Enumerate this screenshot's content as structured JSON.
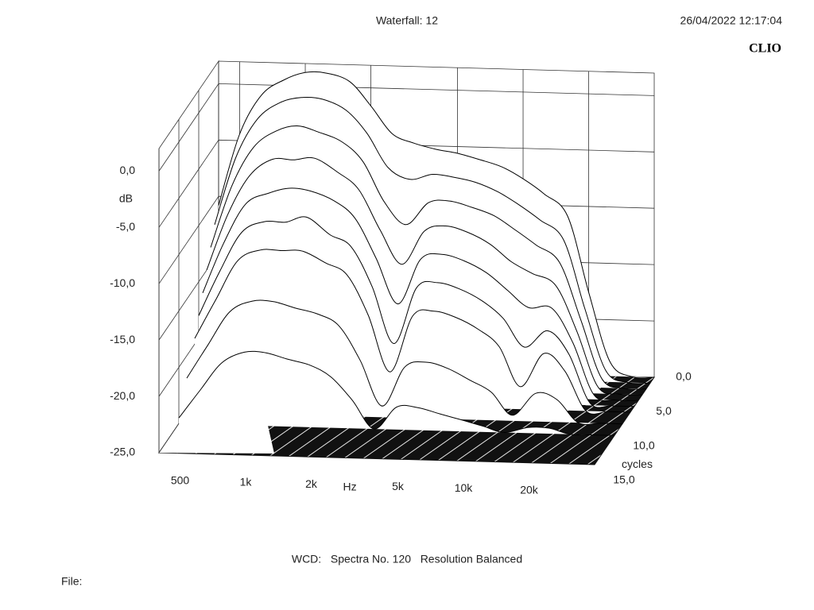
{
  "header": {
    "title": "Waterfall: 12",
    "timestamp": "26/04/2022 12:17:04",
    "brand": "CLIO"
  },
  "chart_data": {
    "type": "waterfall",
    "ylabel": "dB",
    "xlabel": "Hz",
    "zlabel": "cycles",
    "xlog": true,
    "color": "#000000",
    "xlim": [
      400,
      40000
    ],
    "xticks": [
      500,
      {
        "value": 1000,
        "label": "1k"
      },
      {
        "value": 2000,
        "label": "2k"
      },
      {
        "value": 5000,
        "label": "5k"
      },
      {
        "value": 10000,
        "label": "10k"
      },
      {
        "value": 20000,
        "label": "20k"
      }
    ],
    "ylim": [
      -25,
      2
    ],
    "yticks": [
      {
        "value": 0,
        "label": "0,0"
      },
      {
        "value": -5,
        "label": "-5,0"
      },
      {
        "value": -10,
        "label": "-10,0"
      },
      {
        "value": -15,
        "label": "-15,0"
      },
      {
        "value": -20,
        "label": "-20,0"
      },
      {
        "value": -25,
        "label": "-25,0"
      }
    ],
    "zlim": [
      0,
      15
    ],
    "zticks": [
      {
        "value": 0,
        "label": "0,0"
      },
      {
        "value": 5,
        "label": "5,0"
      },
      {
        "value": 10,
        "label": "10,0"
      },
      {
        "value": 15,
        "label": "15,0"
      }
    ],
    "frequencies": [
      400,
      500,
      630,
      800,
      1000,
      1250,
      1600,
      2000,
      2500,
      3150,
      4000,
      5000,
      6300,
      8000,
      10000,
      12500,
      16000,
      20000,
      25000,
      31500,
      40000
    ],
    "slices": [
      {
        "cycles": 0,
        "values": [
          -10.8,
          -4.4,
          -0.9,
          0.5,
          1.2,
          1.2,
          0.5,
          -1.6,
          -4.0,
          -4.8,
          -5.3,
          -5.6,
          -6.1,
          -6.7,
          -7.7,
          -9.0,
          -10.9,
          -17.6,
          -23.7,
          -25,
          -25
        ]
      },
      {
        "cycles": 1,
        "values": [
          -12,
          -6,
          -2.5,
          -1,
          -0.5,
          -0.6,
          -1.5,
          -3.5,
          -6.5,
          -7.5,
          -7,
          -7.2,
          -7.6,
          -8.4,
          -9.5,
          -10.8,
          -12.5,
          -18.5,
          -24,
          -25,
          -25
        ]
      },
      {
        "cycles": 2,
        "values": [
          -13.5,
          -8,
          -4.5,
          -3,
          -2.5,
          -3,
          -3.8,
          -5.5,
          -9,
          -11,
          -9,
          -8.8,
          -9.3,
          -10,
          -11.2,
          -12.5,
          -14,
          -19,
          -24.2,
          -25,
          -25
        ]
      },
      {
        "cycles": 3,
        "values": [
          -15,
          -10,
          -6.5,
          -5,
          -5,
          -4.8,
          -6,
          -7.5,
          -11,
          -14,
          -11,
          -10.5,
          -11,
          -12,
          -13.5,
          -14.5,
          -15.5,
          -19.5,
          -24.4,
          -25,
          -25
        ]
      },
      {
        "cycles": 4,
        "values": [
          -16.5,
          -12,
          -8.5,
          -7.5,
          -7,
          -7.2,
          -8,
          -9.5,
          -13,
          -17,
          -13,
          -12.5,
          -13,
          -14,
          -15.5,
          -17,
          -17,
          -20,
          -24.6,
          -25,
          -25
        ]
      },
      {
        "cycles": 5,
        "values": [
          -18,
          -14,
          -10.5,
          -9.5,
          -9.5,
          -9,
          -10.5,
          -11.5,
          -15,
          -20,
          -15,
          -14.5,
          -15,
          -16,
          -17.5,
          -20,
          -18.5,
          -20.5,
          -24.8,
          -25,
          -25
        ]
      },
      {
        "cycles": 6,
        "values": [
          -19.5,
          -16,
          -12.5,
          -11.5,
          -11.5,
          -11.5,
          -12.5,
          -13.5,
          -17,
          -22,
          -17,
          -16.5,
          -17,
          -18,
          -19.5,
          -23,
          -20,
          -21.5,
          -25,
          -25,
          -25
        ]
      },
      {
        "cycles": 8,
        "values": [
          -22,
          -19,
          -16,
          -15,
          -15,
          -15.5,
          -16,
          -17,
          -20,
          -24,
          -20.5,
          -20,
          -20.5,
          -21.5,
          -22.5,
          -24.5,
          -22.5,
          -23,
          -25,
          -25,
          -25
        ]
      },
      {
        "cycles": 10,
        "values": [
          -24.5,
          -22,
          -19.5,
          -18.5,
          -18.5,
          -19,
          -19.5,
          -20.5,
          -22.5,
          -25,
          -23,
          -23,
          -23.5,
          -24,
          -24.5,
          -25,
          -24.5,
          -24.5,
          -25,
          -25,
          -25
        ]
      }
    ]
  },
  "footer": {
    "info": "WCD:   Spectra No. 120   Resolution Balanced",
    "file": "File:"
  }
}
